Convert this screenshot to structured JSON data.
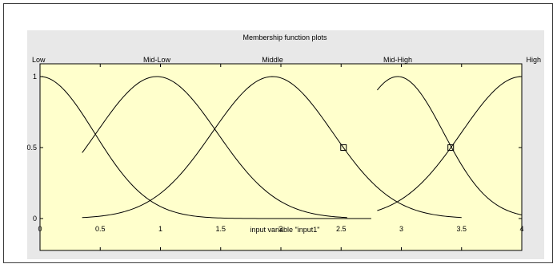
{
  "chart_data": {
    "type": "line",
    "title": "Membership function plots",
    "xlabel": "input variable \"input1\"",
    "ylabel": "",
    "xlim": [
      0,
      4
    ],
    "ylim": [
      0,
      1
    ],
    "x_ticks": [
      0,
      0.5,
      1,
      1.5,
      2,
      2.5,
      3,
      3.5,
      4
    ],
    "x_tick_labels": [
      "0",
      "0.5",
      "1",
      "1.5",
      "2",
      "2.5",
      "3",
      "3.5",
      "4"
    ],
    "y_ticks": [
      0,
      0.5,
      1
    ],
    "y_tick_labels": [
      "0",
      "0.5",
      "1"
    ],
    "grid": false,
    "background_color": "#ffffcc",
    "line_color": "#000000",
    "series": [
      {
        "name": "Low",
        "center": 0,
        "sigma": 0.45,
        "x_range": [
          0,
          2.75
        ]
      },
      {
        "name": "Mid-Low",
        "center": 0.97,
        "sigma": 0.5,
        "x_range": [
          0.35,
          2.55
        ]
      },
      {
        "name": "Middle",
        "center": 1.93,
        "sigma": 0.5,
        "x_range": [
          0.35,
          3.5
        ]
      },
      {
        "name": "Mid-High",
        "center": 2.97,
        "sigma": 0.38,
        "x_range": [
          2.8,
          4
        ]
      },
      {
        "name": "High",
        "center": 4,
        "sigma": 0.5,
        "x_range": [
          2.8,
          4
        ]
      }
    ],
    "markers": [
      {
        "x": 2.52,
        "y": 0.5
      },
      {
        "x": 3.41,
        "y": 0.5
      }
    ]
  }
}
